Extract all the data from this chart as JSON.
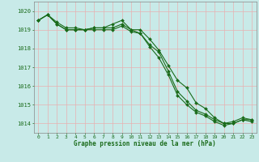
{
  "title": "",
  "xlabel": "Graphe pression niveau de la mer (hPa)",
  "ylabel": "",
  "background_color": "#c8eae8",
  "grid_color": "#e8b0b0",
  "line_color": "#1a6b1a",
  "marker_color": "#1a6b1a",
  "xlim": [
    -0.5,
    23.5
  ],
  "ylim": [
    1013.5,
    1020.5
  ],
  "yticks": [
    1014,
    1015,
    1016,
    1017,
    1018,
    1019,
    1020
  ],
  "xticks": [
    0,
    1,
    2,
    3,
    4,
    5,
    6,
    7,
    8,
    9,
    10,
    11,
    12,
    13,
    14,
    15,
    16,
    17,
    18,
    19,
    20,
    21,
    22,
    23
  ],
  "series": [
    [
      1019.5,
      1019.8,
      1019.3,
      1019.0,
      1019.0,
      1019.0,
      1019.1,
      1019.1,
      1019.1,
      1019.3,
      1019.0,
      1019.0,
      1018.5,
      1017.9,
      1017.1,
      1016.3,
      1015.9,
      1015.1,
      1014.8,
      1014.3,
      1014.0,
      1014.0,
      1014.2,
      1014.2
    ],
    [
      1019.5,
      1019.8,
      1019.3,
      1019.0,
      1019.0,
      1019.0,
      1019.1,
      1019.1,
      1019.3,
      1019.5,
      1019.0,
      1018.8,
      1018.2,
      1017.8,
      1016.8,
      1015.7,
      1015.2,
      1014.7,
      1014.5,
      1014.2,
      1014.0,
      1014.1,
      1014.3,
      1014.2
    ],
    [
      1019.5,
      1019.8,
      1019.4,
      1019.1,
      1019.1,
      1019.0,
      1019.0,
      1019.0,
      1019.0,
      1019.2,
      1018.9,
      1018.8,
      1018.1,
      1017.5,
      1016.6,
      1015.5,
      1015.0,
      1014.6,
      1014.4,
      1014.1,
      1013.9,
      1014.0,
      1014.2,
      1014.1
    ]
  ],
  "figsize": [
    3.2,
    2.0
  ],
  "dpi": 100
}
